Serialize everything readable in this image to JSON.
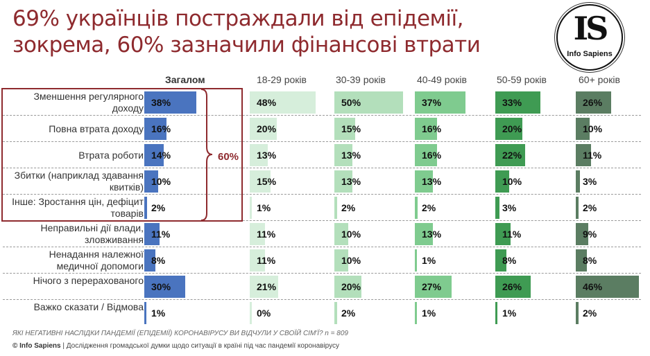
{
  "title_lines": [
    "69% українців постраждали від епідемії,",
    "зокрема, 60% зазначили фінансові втрати"
  ],
  "logo": {
    "letters": "IS",
    "name": "Info Sapiens"
  },
  "bracket_label": "60%",
  "question": "ЯКІ НЕГАТИВНІ НАСЛІДКИ ПАНДЕМІЇ (ЕПІДЕМІЇ) КОРОНАВІРУСУ ВИ ВІДЧУЛИ У СВОЇЙ СІМ'Ї? n = 809",
  "source_brand": "© Info Sapiens",
  "source_text": " | Дослідження громадської думки щодо ситуації в країні під час пандемії коронавірусу",
  "chart_data": {
    "type": "bar",
    "orientation": "horizontal",
    "unit": "%",
    "categories": [
      "Зменшення регулярного доходу",
      "Повна втрата доходу",
      "Втрата роботи",
      "Збитки (наприклад здавання квитків)",
      "Інше: Зростання цін, дефіцит товарів",
      "Неправильні дії влади, зловживання",
      "Ненадання належної медичної допомоги",
      "Нічого з перерахованого",
      "Важко сказати / Відмова"
    ],
    "series": [
      {
        "name": "Загалом",
        "color": "#4a74bf",
        "values": [
          38,
          16,
          14,
          10,
          2,
          11,
          8,
          30,
          1
        ]
      },
      {
        "name": "18-29 років",
        "color": "#d6eedb",
        "values": [
          48,
          20,
          13,
          15,
          1,
          11,
          11,
          21,
          0
        ]
      },
      {
        "name": "30-39 років",
        "color": "#b3dfbb",
        "values": [
          50,
          15,
          13,
          13,
          2,
          10,
          10,
          20,
          2
        ]
      },
      {
        "name": "40-49 років",
        "color": "#7fcb8f",
        "values": [
          37,
          16,
          16,
          13,
          2,
          13,
          1,
          27,
          1
        ]
      },
      {
        "name": "50-59 років",
        "color": "#3f9b53",
        "values": [
          33,
          20,
          22,
          10,
          3,
          11,
          8,
          26,
          1
        ]
      },
      {
        "name": "60+ років",
        "color": "#5b7d62",
        "values": [
          26,
          10,
          11,
          3,
          2,
          9,
          8,
          46,
          2
        ]
      }
    ]
  }
}
